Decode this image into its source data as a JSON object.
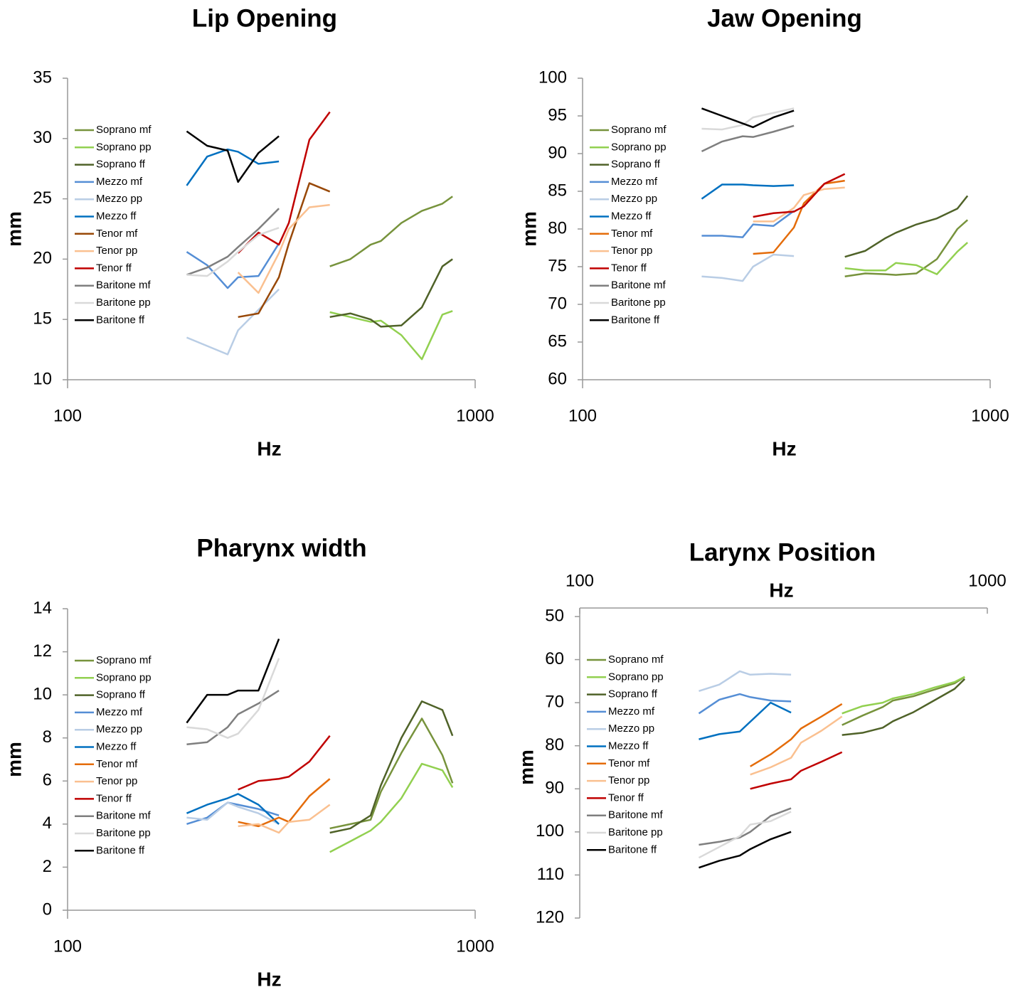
{
  "chart_data": [
    {
      "type": "line",
      "title": "Lip Opening",
      "xlabel": "Hz",
      "ylabel": "mm",
      "xscale": "log",
      "xlim": [
        100,
        1000
      ],
      "xticks": [
        100,
        1000
      ],
      "ylim": [
        10,
        35
      ],
      "yticks": [
        10,
        15,
        20,
        25,
        30,
        35
      ],
      "legend": "left",
      "series": [
        {
          "name": "Soprano mf",
          "color": "#77933c",
          "x": [
            440,
            494,
            554,
            587,
            659,
            740,
            831,
            880
          ],
          "values": [
            19.4,
            20.0,
            21.2,
            21.5,
            23.0,
            24.0,
            24.6,
            25.2
          ]
        },
        {
          "name": "Soprano pp",
          "color": "#92d050",
          "x": [
            440,
            494,
            554,
            587,
            659,
            740,
            831,
            880
          ],
          "values": [
            15.6,
            15.2,
            14.8,
            14.9,
            13.7,
            11.7,
            15.4,
            15.7
          ]
        },
        {
          "name": "Soprano ff",
          "color": "#4f6228",
          "x": [
            440,
            494,
            554,
            587,
            659,
            740,
            831,
            880
          ],
          "values": [
            15.2,
            15.5,
            15.0,
            14.4,
            14.5,
            16.0,
            19.4,
            20.0
          ]
        },
        {
          "name": "Mezzo mf",
          "color": "#558ed5",
          "x": [
            196,
            220,
            247,
            262,
            294,
            330
          ],
          "values": [
            20.6,
            19.5,
            17.6,
            18.5,
            18.6,
            21.3
          ]
        },
        {
          "name": "Mezzo pp",
          "color": "#b9cde5",
          "x": [
            196,
            247,
            262,
            294,
            330
          ],
          "values": [
            13.5,
            12.1,
            14.1,
            15.8,
            17.5
          ]
        },
        {
          "name": "Mezzo ff",
          "color": "#0070c0",
          "x": [
            196,
            220,
            247,
            262,
            294,
            330
          ],
          "values": [
            26.1,
            28.5,
            29.1,
            28.9,
            27.9,
            28.1
          ]
        },
        {
          "name": "Tenor mf",
          "color": "#984807",
          "x": [
            262,
            294,
            330,
            349,
            392,
            440
          ],
          "values": [
            15.2,
            15.5,
            18.5,
            21.3,
            26.3,
            25.6
          ]
        },
        {
          "name": "Tenor pp",
          "color": "#fac090",
          "x": [
            262,
            294,
            330,
            349,
            392,
            440
          ],
          "values": [
            18.9,
            17.2,
            20.5,
            22.5,
            24.3,
            24.5
          ]
        },
        {
          "name": "Tenor ff",
          "color": "#c00000",
          "x": [
            262,
            294,
            330,
            349,
            392,
            440
          ],
          "values": [
            20.5,
            22.2,
            21.2,
            23.0,
            29.9,
            32.2
          ]
        },
        {
          "name": "Baritone mf",
          "color": "#7f7f7f",
          "x": [
            196,
            220,
            247,
            262,
            294,
            330
          ],
          "values": [
            18.7,
            19.3,
            20.2,
            21.0,
            22.5,
            24.2
          ]
        },
        {
          "name": "Baritone pp",
          "color": "#d9d9d9",
          "x": [
            196,
            220,
            247,
            262,
            294,
            330
          ],
          "values": [
            18.7,
            18.6,
            19.8,
            20.6,
            22.0,
            22.6
          ]
        },
        {
          "name": "Baritone ff",
          "color": "#000000",
          "x": [
            196,
            220,
            247,
            262,
            294,
            330
          ],
          "values": [
            30.6,
            29.4,
            29.0,
            26.4,
            28.8,
            30.2
          ]
        }
      ]
    },
    {
      "type": "line",
      "title": "Jaw Opening",
      "xlabel": "Hz",
      "ylabel": "mm",
      "xscale": "log",
      "xlim": [
        100,
        1000
      ],
      "xticks": [
        100,
        1000
      ],
      "ylim": [
        60,
        100
      ],
      "yticks": [
        60,
        65,
        70,
        75,
        80,
        85,
        90,
        95,
        100
      ],
      "legend": "left",
      "series": [
        {
          "name": "Soprano mf",
          "color": "#77933c",
          "x": [
            440,
            494,
            554,
            587,
            659,
            740,
            831,
            880
          ],
          "values": [
            73.7,
            74.1,
            74.0,
            73.9,
            74.1,
            76.0,
            80.0,
            81.2
          ]
        },
        {
          "name": "Soprano pp",
          "color": "#92d050",
          "x": [
            440,
            494,
            554,
            587,
            659,
            740,
            831,
            880
          ],
          "values": [
            74.8,
            74.5,
            74.5,
            75.5,
            75.2,
            74.0,
            77.0,
            78.2
          ]
        },
        {
          "name": "Soprano ff",
          "color": "#4f6228",
          "x": [
            440,
            494,
            554,
            587,
            659,
            740,
            831,
            880
          ],
          "values": [
            76.3,
            77.1,
            78.8,
            79.5,
            80.6,
            81.4,
            82.7,
            84.4
          ]
        },
        {
          "name": "Mezzo mf",
          "color": "#558ed5",
          "x": [
            196,
            220,
            247,
            262,
            294,
            330
          ],
          "values": [
            79.1,
            79.1,
            78.9,
            80.6,
            80.4,
            82.4
          ]
        },
        {
          "name": "Mezzo pp",
          "color": "#b9cde5",
          "x": [
            196,
            220,
            247,
            262,
            294,
            330
          ],
          "values": [
            73.7,
            73.5,
            73.1,
            75.0,
            76.6,
            76.4
          ]
        },
        {
          "name": "Mezzo ff",
          "color": "#0070c0",
          "x": [
            196,
            220,
            247,
            262,
            294,
            330
          ],
          "values": [
            84.0,
            85.9,
            85.9,
            85.8,
            85.7,
            85.8
          ]
        },
        {
          "name": "Tenor mf",
          "color": "#e46c0a",
          "x": [
            262,
            294,
            330,
            349,
            392,
            440
          ],
          "values": [
            76.7,
            76.9,
            80.2,
            83.4,
            86.0,
            86.4
          ]
        },
        {
          "name": "Tenor pp",
          "color": "#fac090",
          "x": [
            262,
            294,
            330,
            349,
            392,
            440
          ],
          "values": [
            81.0,
            81.0,
            82.8,
            84.5,
            85.3,
            85.5
          ]
        },
        {
          "name": "Tenor ff",
          "color": "#c00000",
          "x": [
            262,
            294,
            330,
            349,
            392,
            440
          ],
          "values": [
            81.6,
            82.1,
            82.3,
            83.0,
            86.0,
            87.3
          ]
        },
        {
          "name": "Baritone mf",
          "color": "#7f7f7f",
          "x": [
            196,
            220,
            247,
            262,
            294,
            330
          ],
          "values": [
            90.3,
            91.6,
            92.3,
            92.2,
            92.9,
            93.7
          ]
        },
        {
          "name": "Baritone pp",
          "color": "#d9d9d9",
          "x": [
            196,
            220,
            247,
            262,
            294,
            330
          ],
          "values": [
            93.3,
            93.2,
            93.8,
            94.8,
            95.4,
            96.0
          ]
        },
        {
          "name": "Baritone ff",
          "color": "#000000",
          "x": [
            196,
            220,
            247,
            262,
            294,
            330
          ],
          "values": [
            96.0,
            95.0,
            94.0,
            93.5,
            94.8,
            95.7
          ]
        }
      ]
    },
    {
      "type": "line",
      "title": "Pharynx width",
      "xlabel": "Hz",
      "ylabel": "mm",
      "xscale": "log",
      "xlim": [
        100,
        1000
      ],
      "xticks": [
        100,
        1000
      ],
      "ylim": [
        0,
        14
      ],
      "yticks": [
        0,
        2,
        4,
        6,
        8,
        10,
        12,
        14
      ],
      "legend": "left",
      "series": [
        {
          "name": "Soprano mf",
          "color": "#77933c",
          "x": [
            440,
            494,
            554,
            587,
            659,
            740,
            831,
            880
          ],
          "values": [
            3.8,
            4.0,
            4.2,
            5.5,
            7.3,
            8.9,
            7.2,
            5.9
          ]
        },
        {
          "name": "Soprano pp",
          "color": "#92d050",
          "x": [
            440,
            494,
            554,
            587,
            659,
            740,
            831,
            880
          ],
          "values": [
            2.7,
            3.2,
            3.7,
            4.1,
            5.2,
            6.8,
            6.5,
            5.7
          ]
        },
        {
          "name": "Soprano ff",
          "color": "#4f6228",
          "x": [
            440,
            494,
            554,
            587,
            659,
            740,
            831,
            880
          ],
          "values": [
            3.6,
            3.8,
            4.4,
            5.8,
            8.0,
            9.7,
            9.3,
            8.1
          ]
        },
        {
          "name": "Mezzo mf",
          "color": "#558ed5",
          "x": [
            196,
            220,
            247,
            262,
            294,
            330
          ],
          "values": [
            4.0,
            4.3,
            5.0,
            4.9,
            4.7,
            4.4
          ]
        },
        {
          "name": "Mezzo pp",
          "color": "#b9cde5",
          "x": [
            196,
            220,
            247,
            262,
            294,
            330
          ],
          "values": [
            4.3,
            4.2,
            5.0,
            4.8,
            4.5,
            4.0
          ]
        },
        {
          "name": "Mezzo ff",
          "color": "#0070c0",
          "x": [
            196,
            220,
            247,
            262,
            294,
            330
          ],
          "values": [
            4.5,
            4.9,
            5.2,
            5.4,
            4.9,
            4.0
          ]
        },
        {
          "name": "Tenor mf",
          "color": "#e46c0a",
          "x": [
            262,
            294,
            330,
            349,
            392,
            440
          ],
          "values": [
            4.1,
            3.9,
            4.3,
            4.1,
            5.3,
            6.1
          ]
        },
        {
          "name": "Tenor pp",
          "color": "#fac090",
          "x": [
            262,
            294,
            330,
            349,
            392,
            440
          ],
          "values": [
            3.9,
            4.0,
            3.6,
            4.1,
            4.2,
            4.9
          ]
        },
        {
          "name": "Tenor ff",
          "color": "#c00000",
          "x": [
            262,
            294,
            330,
            349,
            392,
            440
          ],
          "values": [
            5.6,
            6.0,
            6.1,
            6.2,
            6.9,
            8.1
          ]
        },
        {
          "name": "Baritone mf",
          "color": "#7f7f7f",
          "x": [
            196,
            220,
            247,
            262,
            294,
            330
          ],
          "values": [
            7.7,
            7.8,
            8.5,
            9.1,
            9.6,
            10.2
          ]
        },
        {
          "name": "Baritone pp",
          "color": "#d9d9d9",
          "x": [
            196,
            220,
            247,
            262,
            294,
            330
          ],
          "values": [
            8.5,
            8.4,
            8.0,
            8.2,
            9.3,
            11.7
          ]
        },
        {
          "name": "Baritone ff",
          "color": "#000000",
          "x": [
            196,
            220,
            247,
            262,
            294,
            330
          ],
          "values": [
            8.7,
            10.0,
            10.0,
            10.2,
            10.2,
            12.6
          ]
        }
      ]
    },
    {
      "type": "line",
      "title": "Larynx Position",
      "xlabel": "Hz",
      "ylabel": "mm",
      "xscale": "log",
      "xlim": [
        100,
        1000
      ],
      "xticks": [
        100,
        1000
      ],
      "ylim": [
        120,
        50
      ],
      "yticks": [
        50,
        60,
        70,
        80,
        90,
        100,
        110,
        120
      ],
      "x_axis_position": "top",
      "legend": "left",
      "series": [
        {
          "name": "Soprano mf",
          "color": "#77933c",
          "x": [
            440,
            494,
            554,
            587,
            659,
            740,
            831,
            880
          ],
          "values": [
            75.2,
            73.0,
            71.0,
            69.5,
            68.5,
            67.0,
            65.5,
            64.0
          ]
        },
        {
          "name": "Soprano pp",
          "color": "#92d050",
          "x": [
            440,
            494,
            554,
            587,
            659,
            740,
            831,
            880
          ],
          "values": [
            72.5,
            70.8,
            70.0,
            69.0,
            68.0,
            66.5,
            65.2,
            64.0
          ]
        },
        {
          "name": "Soprano ff",
          "color": "#4f6228",
          "x": [
            440,
            494,
            554,
            587,
            659,
            740,
            831,
            880
          ],
          "values": [
            77.5,
            77.0,
            75.8,
            74.3,
            72.2,
            69.5,
            66.8,
            64.5
          ]
        },
        {
          "name": "Mezzo mf",
          "color": "#558ed5",
          "x": [
            196,
            220,
            247,
            262,
            294,
            330
          ],
          "values": [
            72.5,
            69.3,
            68.0,
            68.7,
            69.5,
            69.7
          ]
        },
        {
          "name": "Mezzo pp",
          "color": "#b9cde5",
          "x": [
            196,
            220,
            247,
            262,
            294,
            330
          ],
          "values": [
            67.3,
            65.8,
            62.7,
            63.5,
            63.3,
            63.5
          ]
        },
        {
          "name": "Mezzo ff",
          "color": "#0070c0",
          "x": [
            196,
            220,
            247,
            294,
            330
          ],
          "values": [
            78.5,
            77.3,
            76.7,
            70.0,
            72.3
          ]
        },
        {
          "name": "Tenor mf",
          "color": "#e46c0a",
          "x": [
            262,
            294,
            330,
            349,
            392,
            440
          ],
          "values": [
            84.8,
            82.0,
            78.5,
            76.0,
            73.2,
            70.3
          ]
        },
        {
          "name": "Tenor pp",
          "color": "#fac090",
          "x": [
            262,
            294,
            330,
            349,
            392,
            440
          ],
          "values": [
            86.7,
            85.0,
            82.8,
            79.3,
            76.5,
            73.2
          ]
        },
        {
          "name": "Tenor ff",
          "color": "#c00000",
          "x": [
            262,
            294,
            330,
            349,
            392,
            440
          ],
          "values": [
            90.0,
            88.8,
            87.8,
            85.8,
            83.7,
            81.5
          ]
        },
        {
          "name": "Baritone mf",
          "color": "#7f7f7f",
          "x": [
            196,
            220,
            247,
            262,
            294,
            330
          ],
          "values": [
            103.0,
            102.3,
            101.3,
            100.0,
            96.3,
            94.5
          ]
        },
        {
          "name": "Baritone pp",
          "color": "#d9d9d9",
          "x": [
            196,
            220,
            247,
            262,
            294,
            330
          ],
          "values": [
            106.0,
            103.5,
            101.0,
            98.3,
            97.5,
            95.3
          ]
        },
        {
          "name": "Baritone ff",
          "color": "#000000",
          "x": [
            196,
            220,
            247,
            262,
            294,
            330
          ],
          "values": [
            108.3,
            106.7,
            105.5,
            104.0,
            101.7,
            100.0
          ]
        }
      ]
    }
  ]
}
